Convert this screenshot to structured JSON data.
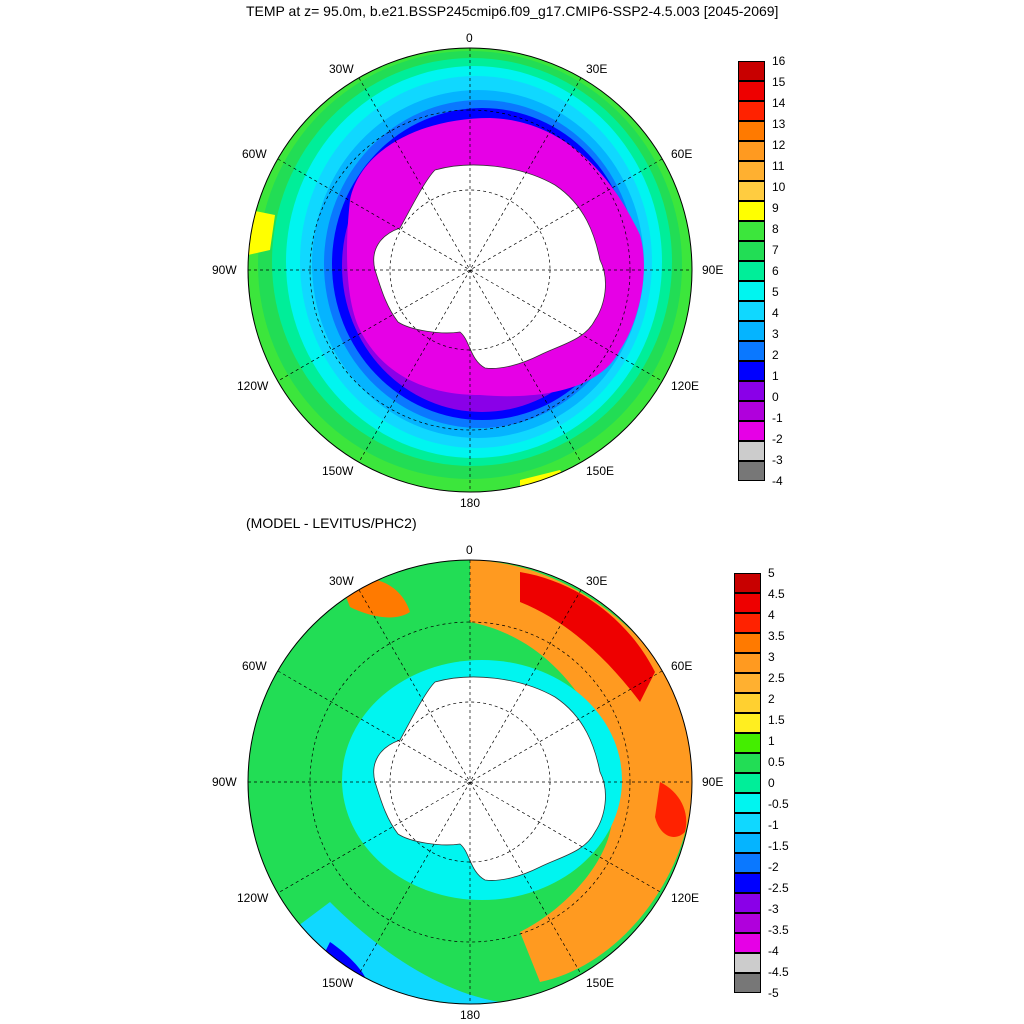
{
  "title": "TEMP at z=  95.0m, b.e21.BSSP245cmip6.f09_g17.CMIP6-SSP2-4.5.003 [2045-2069]",
  "subtitle": "(MODEL - LEVITUS/PHC2)",
  "lon_labels": [
    "0",
    "30E",
    "60E",
    "90E",
    "120E",
    "150E",
    "180",
    "150W",
    "120W",
    "90W",
    "60W",
    "30W"
  ],
  "top_colorbar": {
    "labels": [
      "16",
      "15",
      "14",
      "13",
      "12",
      "11",
      "10",
      "9",
      "8",
      "7",
      "6",
      "5",
      "4",
      "3",
      "2",
      "1",
      "0",
      "-1",
      "-2",
      "-3",
      "-4"
    ],
    "colors": [
      "#c80000",
      "#ee0000",
      "#ff2200",
      "#ff7a00",
      "#ff9a20",
      "#ffb030",
      "#ffcc40",
      "#ffff00",
      "#3ce63c",
      "#22dd55",
      "#00ee99",
      "#00f5f0",
      "#10d8ff",
      "#05b4ff",
      "#0a78ff",
      "#0000ff",
      "#8a00e8",
      "#b000dc",
      "#e600e6",
      "#cccccc",
      "#777777"
    ]
  },
  "bottom_colorbar": {
    "labels": [
      "5",
      "4.5",
      "4",
      "3.5",
      "3",
      "2.5",
      "2",
      "1.5",
      "1",
      "0.5",
      "0",
      "-0.5",
      "-1",
      "-1.5",
      "-2",
      "-2.5",
      "-3",
      "-3.5",
      "-4",
      "-4.5",
      "-5"
    ],
    "colors": [
      "#c80000",
      "#ee0000",
      "#ff2200",
      "#ff7a00",
      "#ff9a20",
      "#ffb030",
      "#ffd030",
      "#ffee20",
      "#44ee00",
      "#22dd55",
      "#00ee99",
      "#00f5f0",
      "#10d8ff",
      "#05b4ff",
      "#0a78ff",
      "#0000ff",
      "#8a00e8",
      "#b000dc",
      "#e600e6",
      "#cccccc",
      "#777777"
    ]
  }
}
